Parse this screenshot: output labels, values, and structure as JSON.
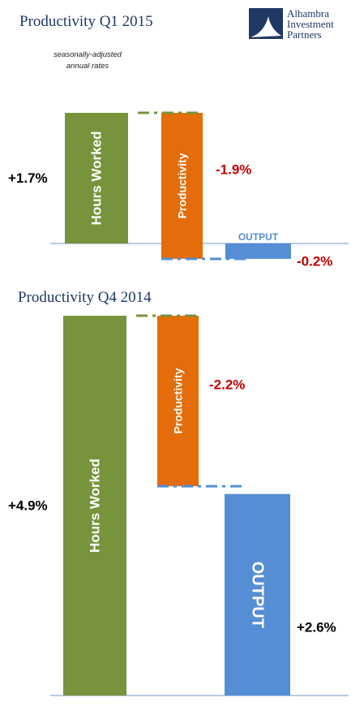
{
  "logo": {
    "name": "Alhambra Investment Partners",
    "line1": "Alhambra",
    "line2": "Investment",
    "line3": "Partners"
  },
  "note": {
    "line1": "seasonally-adjusted",
    "line2": "annual rates"
  },
  "colors": {
    "hours": "#77933c",
    "productivity": "#e46c0a",
    "output": "#558ed5",
    "negative_text": "#c00000",
    "positive_text": "#000000",
    "title_text": "#1f3864",
    "axis": "#8eaadb"
  },
  "chart_data": [
    {
      "type": "waterfall",
      "title": "Productivity Q1 2015",
      "series": [
        {
          "name": "Hours Worked",
          "value": 1.7,
          "value_label": "+1.7%"
        },
        {
          "name": "Productivity",
          "value": -1.9,
          "value_label": "-1.9%"
        },
        {
          "name": "OUTPUT",
          "value": -0.2,
          "value_label": "-0.2%"
        }
      ]
    },
    {
      "type": "waterfall",
      "title": "Productivity Q4 2014",
      "series": [
        {
          "name": "Hours Worked",
          "value": 4.9,
          "value_label": "+4.9%"
        },
        {
          "name": "Productivity",
          "value": -2.2,
          "value_label": "-2.2%"
        },
        {
          "name": "OUTPUT",
          "value": 2.6,
          "value_label": "+2.6%"
        }
      ]
    }
  ]
}
